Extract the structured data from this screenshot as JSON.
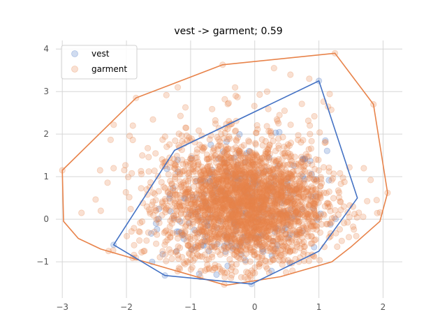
{
  "chart_data": {
    "type": "scatter",
    "title": "vest -> garment; 0.59",
    "xlabel": "",
    "ylabel": "",
    "xlim": [
      -3.1,
      2.3
    ],
    "ylim": [
      -1.85,
      4.2
    ],
    "xticks": [
      -3,
      -2,
      -1,
      0,
      1,
      2
    ],
    "yticks": [
      -1,
      0,
      1,
      2,
      3,
      4
    ],
    "xtick_labels": [
      "−3",
      "−2",
      "−1",
      "0",
      "1",
      "2"
    ],
    "ytick_labels": [
      "−1",
      "0",
      "1",
      "2",
      "3",
      "4"
    ],
    "grid": true,
    "legend_position": "top-left",
    "series": [
      {
        "name": "vest",
        "color": "#4472c4",
        "marker_alpha": 0.25,
        "hull": [
          [
            -2.2,
            -0.6
          ],
          [
            -1.4,
            -1.32
          ],
          [
            -0.05,
            -1.52
          ],
          [
            1.0,
            -0.75
          ],
          [
            1.6,
            0.5
          ],
          [
            1.0,
            3.25
          ],
          [
            -1.25,
            1.62
          ]
        ],
        "sample_points": [
          [
            -1.4,
            -1.32
          ],
          [
            -0.05,
            -1.52
          ],
          [
            1.0,
            3.25
          ],
          [
            1.1,
            1.85
          ],
          [
            -1.6,
            -1.0
          ],
          [
            -2.2,
            -0.6
          ]
        ]
      },
      {
        "name": "garment",
        "color": "#e8834a",
        "marker_alpha": 0.25,
        "hull": [
          [
            -3.0,
            1.15
          ],
          [
            -2.98,
            -0.05
          ],
          [
            -2.75,
            -0.45
          ],
          [
            -2.4,
            -0.7
          ],
          [
            -0.45,
            -1.55
          ],
          [
            0.4,
            -1.35
          ],
          [
            1.2,
            -1.0
          ],
          [
            1.5,
            -0.65
          ],
          [
            1.95,
            -0.05
          ],
          [
            2.07,
            0.62
          ],
          [
            1.85,
            2.7
          ],
          [
            1.25,
            3.9
          ],
          [
            -0.5,
            3.63
          ],
          [
            -1.85,
            2.85
          ]
        ],
        "sample_points": [
          [
            -3.0,
            1.15
          ],
          [
            -1.85,
            2.85
          ],
          [
            -0.5,
            3.63
          ],
          [
            1.25,
            3.9
          ],
          [
            1.85,
            2.7
          ],
          [
            2.07,
            0.62
          ],
          [
            -2.7,
            0.15
          ],
          [
            -2.4,
            0.2
          ],
          [
            -2.2,
            1.2
          ],
          [
            -1.9,
            2.2
          ],
          [
            -1.2,
            3.1
          ],
          [
            0.3,
            3.55
          ],
          [
            0.85,
            3.3
          ],
          [
            1.7,
            1.2
          ],
          [
            1.9,
            0.45
          ]
        ]
      }
    ]
  }
}
